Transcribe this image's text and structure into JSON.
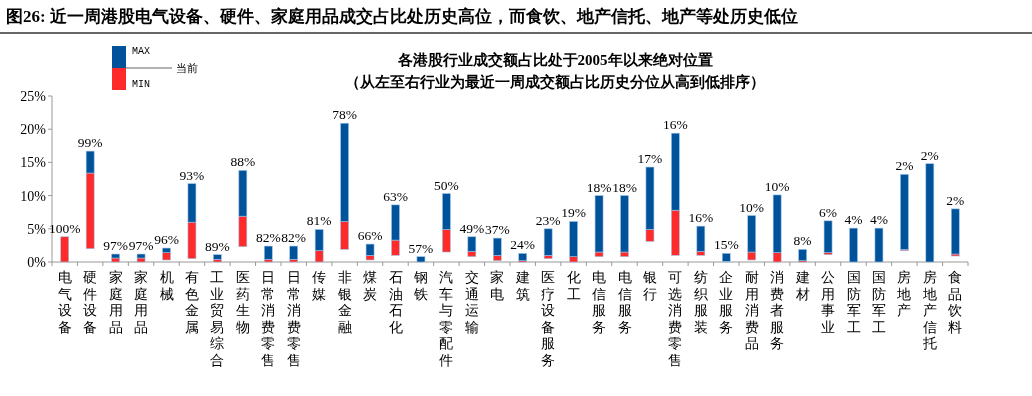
{
  "chart_data": {
    "type": "bar",
    "title": "图26:  近一周港股电气设备、硬件、家庭用品成交占比处历史高位，而食饮、地产信托、地产等处历史低位",
    "subtitle": "各港股行业成交额占比处于2005年以来绝对位置",
    "annotations": [
      "（从左至右行业为最近一周成交额占比历史分位从高到低排序）",
      "当前",
      {
        "text": "100%",
        "x": "电气设备",
        "y": 3.8
      },
      {
        "text": "99%",
        "x": "硬件设备",
        "y": 16.7
      },
      {
        "text": "97%",
        "x": "家庭用品",
        "y": 1.2
      },
      {
        "text": "97%",
        "x": "家庭用品",
        "y": 1.2
      },
      {
        "text": "96%",
        "x": "机械",
        "y": 2.1
      },
      {
        "text": "93%",
        "x": "有色金属",
        "y": 11.8
      },
      {
        "text": "89%",
        "x": "工业贸易综合",
        "y": 1.1
      },
      {
        "text": "88%",
        "x": "医药生物",
        "y": 13.8
      },
      {
        "text": "82%",
        "x": "日常消费零售",
        "y": 2.4
      },
      {
        "text": "82%",
        "x": "日常消费零售",
        "y": 2.4
      },
      {
        "text": "81%",
        "x": "传媒",
        "y": 4.9
      },
      {
        "text": "78%",
        "x": "非银金融",
        "y": 20.9
      },
      {
        "text": "66%",
        "x": "煤炭",
        "y": 2.7
      },
      {
        "text": "63%",
        "x": "石油石化",
        "y": 8.6
      },
      {
        "text": "57%",
        "x": "钢铁",
        "y": 0.8
      },
      {
        "text": "50%",
        "x": "汽车与零配件",
        "y": 10.3
      },
      {
        "text": "49%",
        "x": "交通运输",
        "y": 3.8
      },
      {
        "text": "37%",
        "x": "家电",
        "y": 3.6
      },
      {
        "text": "24%",
        "x": "建筑",
        "y": 1.3
      },
      {
        "text": "23%",
        "x": "医疗设备服务",
        "y": 5.0
      },
      {
        "text": "19%",
        "x": "化工",
        "y": 6.1
      },
      {
        "text": "18%",
        "x": "电信服务",
        "y": 10.0
      },
      {
        "text": "18%",
        "x": "电信服务",
        "y": 10.0
      },
      {
        "text": "17%",
        "x": "银行",
        "y": 14.3
      },
      {
        "text": "16%",
        "x": "可选消费零售",
        "y": 19.4
      },
      {
        "text": "16%",
        "x": "纺织服装",
        "y": 5.4
      },
      {
        "text": "15%",
        "x": "企业服务",
        "y": 1.3
      },
      {
        "text": "10%",
        "x": "耐用消费品",
        "y": 7.0
      },
      {
        "text": "10%",
        "x": "消费者服务",
        "y": 10.1
      },
      {
        "text": "8%",
        "x": "建材",
        "y": 1.9
      },
      {
        "text": "6%",
        "x": "公用事业",
        "y": 6.2
      },
      {
        "text": "4%",
        "x": "国防军工",
        "y": 5.1
      },
      {
        "text": "4%",
        "x": "国防军工",
        "y": 5.1
      },
      {
        "text": "2%",
        "x": "房地产",
        "y": 13.2
      },
      {
        "text": "2%",
        "x": "房地产信托",
        "y": 14.8
      },
      {
        "text": "2%",
        "x": "食品饮料",
        "y": 8.0
      }
    ],
    "categories": [
      "电气设备",
      "硬件设备",
      "家庭用品",
      "家庭用品",
      "机械",
      "有色金属",
      "工业贸易综合",
      "医药生物",
      "日常消费零售",
      "日常消费零售",
      "传媒",
      "非银金融",
      "煤炭",
      "石油石化",
      "钢铁",
      "汽车与零配件",
      "交通运输",
      "家电",
      "建筑",
      "医疗设备服务",
      "化工",
      "电信服务",
      "电信服务",
      "银行",
      "可选消费零售",
      "纺织服装",
      "企业服务",
      "耐用消费品",
      "消费者服务",
      "建材",
      "公用事业",
      "国防军工",
      "国防军工",
      "房地产",
      "房地产信托",
      "食品饮料"
    ],
    "series": [
      {
        "name": "MIN",
        "color": "#ff2a2a",
        "base": [
          0,
          2.0,
          0,
          0,
          0.3,
          0.5,
          0,
          2.3,
          0,
          0,
          0,
          1.9,
          0.3,
          1.0,
          null,
          1.5,
          0.8,
          0.2,
          0,
          0.5,
          0,
          0.8,
          0.8,
          3.1,
          1.0,
          1.0,
          0,
          0.3,
          0,
          0,
          1.1,
          null,
          null,
          1.7,
          null,
          0.9
        ],
        "values": [
          3.8,
          11.4,
          0.6,
          0.6,
          1.1,
          5.5,
          0.4,
          4.6,
          0.4,
          0.4,
          1.7,
          4.2,
          0.7,
          2.3,
          null,
          3.4,
          0.8,
          0.8,
          0.2,
          0.5,
          0.8,
          0.7,
          0.7,
          1.8,
          6.8,
          0.6,
          0.1,
          1.2,
          1.4,
          0.2,
          0.3,
          null,
          null,
          0.2,
          null,
          0.3
        ]
      },
      {
        "name": "MAX",
        "color": "#00539b",
        "base": [
          null,
          13.4,
          0.6,
          0.6,
          1.4,
          6.0,
          0.4,
          6.9,
          0.4,
          0.4,
          1.7,
          6.1,
          1.0,
          3.3,
          0,
          4.9,
          1.6,
          1.0,
          0.2,
          1.0,
          0.8,
          1.5,
          1.5,
          4.9,
          7.8,
          1.6,
          0.1,
          1.5,
          1.4,
          0.2,
          1.4,
          0,
          0,
          1.9,
          0,
          1.2
        ],
        "values": [
          null,
          3.3,
          0.6,
          0.6,
          0.7,
          5.8,
          0.7,
          6.9,
          2.0,
          2.0,
          3.2,
          14.8,
          1.7,
          5.3,
          0.8,
          5.4,
          2.2,
          2.6,
          1.1,
          4.0,
          5.3,
          8.5,
          8.5,
          9.4,
          11.6,
          3.8,
          1.2,
          5.5,
          8.7,
          1.7,
          4.8,
          5.1,
          5.1,
          11.3,
          14.8,
          6.8
        ]
      }
    ],
    "ylim": [
      0,
      25
    ],
    "yticks": [
      {
        "value": 0,
        "label": "0%"
      },
      {
        "value": 5,
        "label": "5%"
      },
      {
        "value": 10,
        "label": "10%"
      },
      {
        "value": 15,
        "label": "15%"
      },
      {
        "value": 20,
        "label": "20%"
      },
      {
        "value": 25,
        "label": "25%"
      }
    ],
    "legend": "top left"
  }
}
